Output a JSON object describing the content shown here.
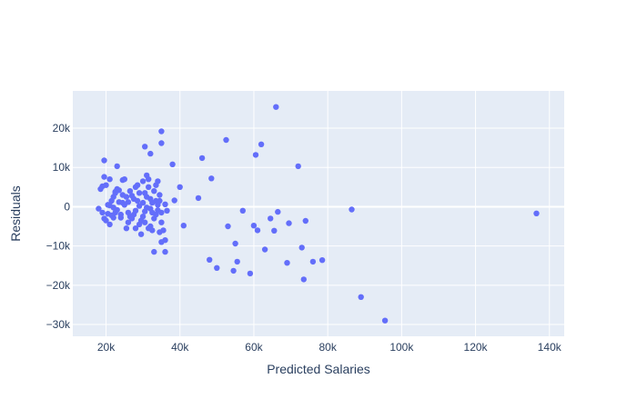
{
  "chart_data": {
    "type": "scatter",
    "xlabel": "Predicted Salaries",
    "ylabel": "Residuals",
    "xlim": [
      11000,
      144000
    ],
    "ylim": [
      -33000,
      29500
    ],
    "x_ticks": [
      20000,
      40000,
      60000,
      80000,
      100000,
      120000,
      140000
    ],
    "x_tick_labels": [
      "20k",
      "40k",
      "60k",
      "80k",
      "100k",
      "120k",
      "140k"
    ],
    "y_ticks": [
      -30000,
      -20000,
      -10000,
      0,
      10000,
      20000
    ],
    "y_tick_labels": [
      "−30k",
      "−20k",
      "−10k",
      "0",
      "10k",
      "20k"
    ],
    "grid": true,
    "colors": {
      "plot_bg": "#e5ecf6",
      "grid": "#ffffff",
      "marker": "#636efa",
      "text": "#2a3f5f"
    },
    "series": [
      {
        "points": [
          [
            19500,
            11800
          ],
          [
            19500,
            7600
          ],
          [
            21000,
            7000
          ],
          [
            19000,
            5200
          ],
          [
            18500,
            4500
          ],
          [
            20000,
            5500
          ],
          [
            18000,
            -500
          ],
          [
            19000,
            -1500
          ],
          [
            19500,
            -3000
          ],
          [
            20000,
            -3500
          ],
          [
            21000,
            -4500
          ],
          [
            20500,
            -1800
          ],
          [
            21500,
            1500
          ],
          [
            22000,
            2500
          ],
          [
            22500,
            3800
          ],
          [
            23000,
            4500
          ],
          [
            23500,
            4200
          ],
          [
            22500,
            3500
          ],
          [
            20500,
            500
          ],
          [
            21000,
            300
          ],
          [
            22000,
            -200
          ],
          [
            23000,
            -800
          ],
          [
            23500,
            1200
          ],
          [
            24000,
            -2000
          ],
          [
            22000,
            -2800
          ],
          [
            24000,
            -2800
          ],
          [
            22500,
            -1500
          ],
          [
            23000,
            10300
          ],
          [
            24500,
            6800
          ],
          [
            25000,
            7000
          ],
          [
            25500,
            2500
          ],
          [
            24500,
            1000
          ],
          [
            25000,
            500
          ],
          [
            26000,
            -1500
          ],
          [
            26500,
            -2500
          ],
          [
            27000,
            -3000
          ],
          [
            26000,
            -4000
          ],
          [
            25500,
            -5500
          ],
          [
            27000,
            2800
          ],
          [
            27500,
            2000
          ],
          [
            28000,
            5000
          ],
          [
            28500,
            5500
          ],
          [
            28500,
            1500
          ],
          [
            29000,
            200
          ],
          [
            28000,
            -1000
          ],
          [
            29500,
            -3500
          ],
          [
            29000,
            -4500
          ],
          [
            29500,
            -7000
          ],
          [
            30000,
            -2500
          ],
          [
            30500,
            3500
          ],
          [
            30500,
            15300
          ],
          [
            31000,
            8000
          ],
          [
            31500,
            7000
          ],
          [
            32000,
            13500
          ],
          [
            31500,
            5000
          ],
          [
            32000,
            2000
          ],
          [
            32500,
            1000
          ],
          [
            32000,
            -500
          ],
          [
            32500,
            -1500
          ],
          [
            33000,
            -3000
          ],
          [
            32000,
            -5000
          ],
          [
            33000,
            -11500
          ],
          [
            33500,
            5500
          ],
          [
            34000,
            6500
          ],
          [
            34500,
            3000
          ],
          [
            35000,
            16200
          ],
          [
            35000,
            19200
          ],
          [
            34500,
            1500
          ],
          [
            35000,
            -1500
          ],
          [
            35000,
            -4000
          ],
          [
            35500,
            -6000
          ],
          [
            35000,
            -9000
          ],
          [
            36000,
            -8500
          ],
          [
            36000,
            -11500
          ],
          [
            36500,
            -1000
          ],
          [
            34500,
            -6500
          ],
          [
            34000,
            500
          ],
          [
            33500,
            -2000
          ],
          [
            30000,
            1000
          ],
          [
            31000,
            -200
          ],
          [
            30500,
            -4000
          ],
          [
            31500,
            -5500
          ],
          [
            32500,
            -6000
          ],
          [
            33000,
            4000
          ],
          [
            36000,
            600
          ],
          [
            38000,
            10800
          ],
          [
            38500,
            1600
          ],
          [
            40000,
            5000
          ],
          [
            41000,
            -4800
          ],
          [
            45000,
            2200
          ],
          [
            46000,
            12400
          ],
          [
            48000,
            -13500
          ],
          [
            48500,
            7200
          ],
          [
            50000,
            -15600
          ],
          [
            52500,
            17000
          ],
          [
            53000,
            -5000
          ],
          [
            54500,
            -16300
          ],
          [
            55000,
            -9400
          ],
          [
            55500,
            -14000
          ],
          [
            57000,
            -1000
          ],
          [
            59000,
            -17000
          ],
          [
            60000,
            -4800
          ],
          [
            60500,
            13200
          ],
          [
            61000,
            -6000
          ],
          [
            62000,
            15900
          ],
          [
            63000,
            -10900
          ],
          [
            64500,
            -3000
          ],
          [
            65500,
            -6100
          ],
          [
            66000,
            25400
          ],
          [
            66500,
            -1300
          ],
          [
            69000,
            -14300
          ],
          [
            69500,
            -4200
          ],
          [
            72000,
            10300
          ],
          [
            73000,
            -10400
          ],
          [
            73500,
            -18500
          ],
          [
            74000,
            -3600
          ],
          [
            76000,
            -14000
          ],
          [
            78500,
            -13600
          ],
          [
            86500,
            -700
          ],
          [
            89000,
            -23000
          ],
          [
            95500,
            -29000
          ],
          [
            136500,
            -1700
          ],
          [
            26500,
            4000
          ],
          [
            27500,
            -2000
          ],
          [
            29000,
            3500
          ],
          [
            30000,
            6500
          ],
          [
            31000,
            2500
          ],
          [
            33500,
            1500
          ],
          [
            21500,
            -2200
          ],
          [
            24500,
            3000
          ],
          [
            26000,
            1200
          ],
          [
            28000,
            -5500
          ],
          [
            30500,
            -1200
          ],
          [
            34000,
            -900
          ]
        ]
      }
    ]
  }
}
